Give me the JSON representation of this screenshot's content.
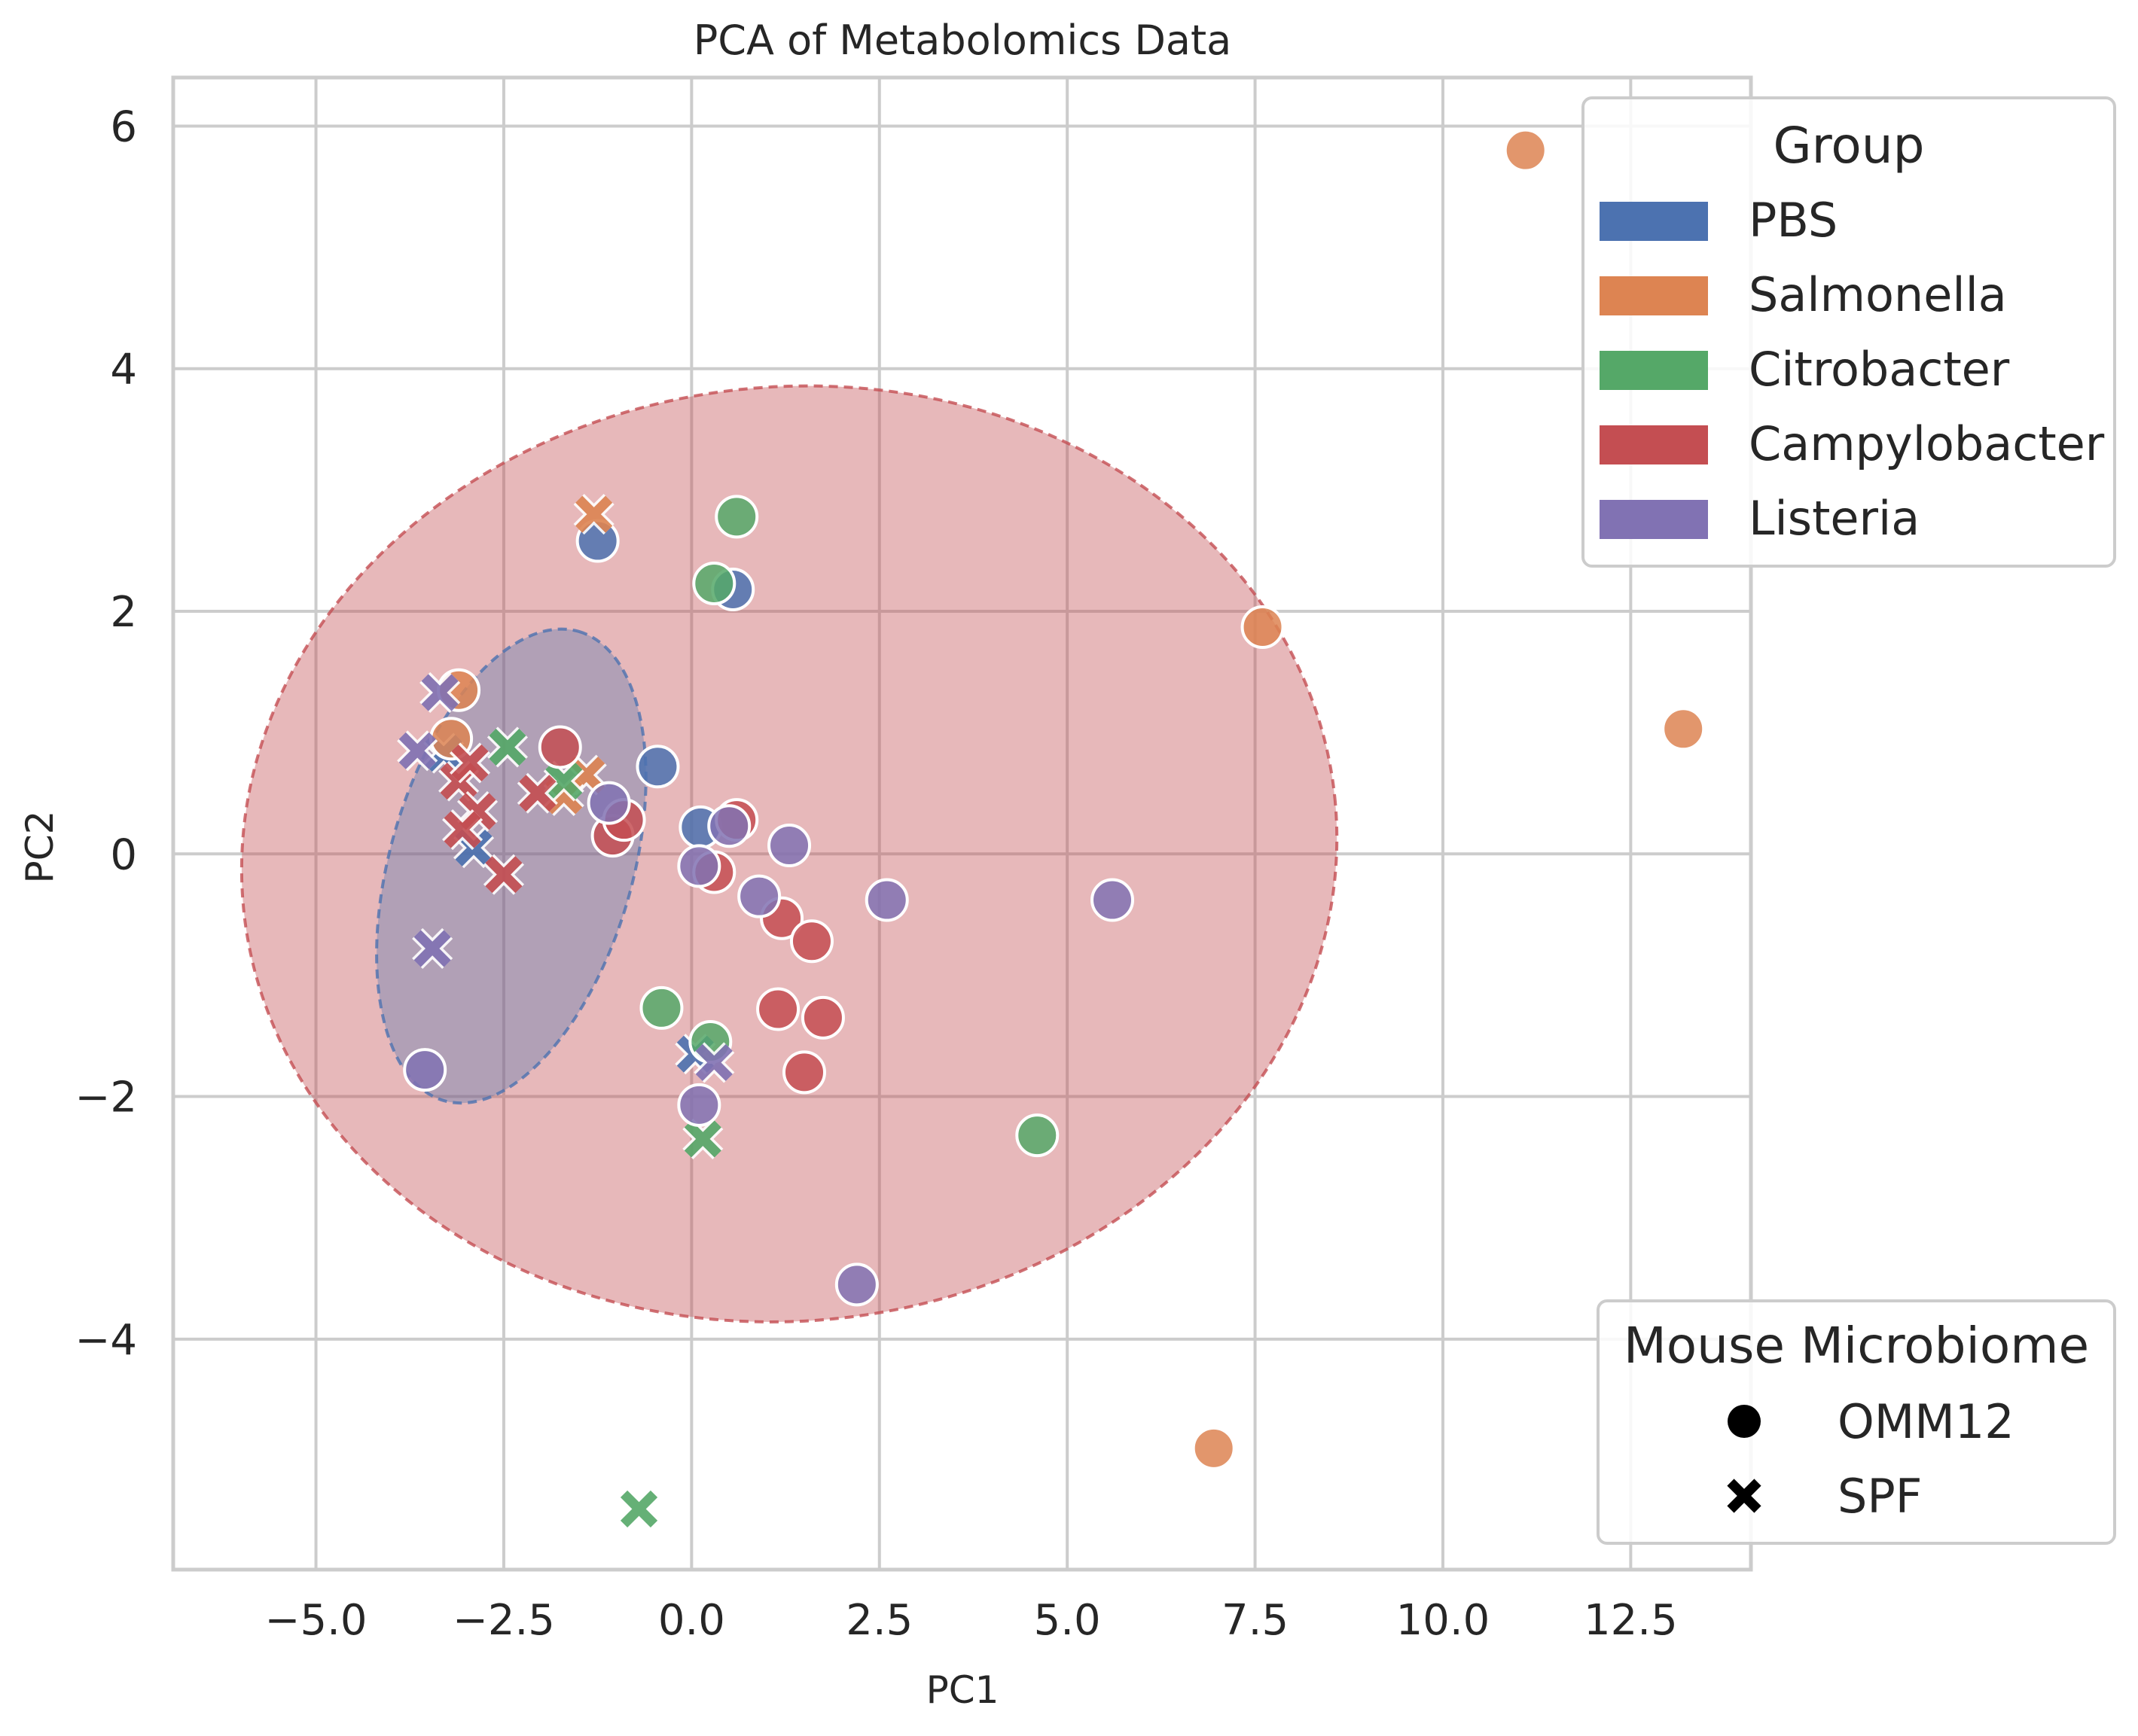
{
  "colors": {
    "PBS": "#4c72b0",
    "Salmonella": "#dd8452",
    "Citrobacter": "#55a868",
    "Campylobacter": "#c44e52",
    "Listeria": "#8172b3",
    "grid": "#cccccc",
    "background": "#ffffff"
  },
  "chart_data": {
    "type": "scatter",
    "title": "PCA of Metabolomics Data",
    "xlabel": "PC1",
    "ylabel": "PC2",
    "xlim": [
      -6.9,
      14.1
    ],
    "ylim": [
      -5.9,
      6.4
    ],
    "xticks": [
      -5.0,
      -2.5,
      0.0,
      2.5,
      5.0,
      7.5,
      10.0,
      12.5
    ],
    "xtick_labels": [
      "−5.0",
      "−2.5",
      "0.0",
      "2.5",
      "5.0",
      "7.5",
      "10.0",
      "12.5"
    ],
    "yticks": [
      -4,
      -2,
      0,
      2,
      4,
      6
    ],
    "ytick_labels": [
      "−4",
      "−2",
      "0",
      "2",
      "4",
      "6"
    ],
    "grid": true,
    "legend_group": {
      "title": "Group",
      "placement": "top-right",
      "entries": [
        "PBS",
        "Salmonella",
        "Citrobacter",
        "Campylobacter",
        "Listeria"
      ]
    },
    "legend_marker": {
      "title": "Mouse Microbiome",
      "placement": "bottom-right",
      "entries": [
        {
          "label": "OMM12",
          "marker": "circle"
        },
        {
          "label": "SPF",
          "marker": "x"
        }
      ]
    },
    "ellipses": [
      {
        "group": "Campylobacter",
        "center": [
          1.3,
          0.0
        ],
        "rx": 7.3,
        "ry": 3.85,
        "angle_deg": -6,
        "opacity": 0.4
      },
      {
        "group": "PBS",
        "center": [
          -2.4,
          -0.1
        ],
        "rx": 3.25,
        "ry": 1.0,
        "angle_deg": -74,
        "opacity": 0.35
      }
    ],
    "series": [
      {
        "name": "PBS",
        "points": [
          {
            "x": -0.45,
            "y": 0.72,
            "marker": "circle"
          },
          {
            "x": 0.12,
            "y": 0.22,
            "marker": "circle"
          },
          {
            "x": -1.25,
            "y": 2.58,
            "marker": "circle"
          },
          {
            "x": 0.55,
            "y": 2.18,
            "marker": "circle"
          },
          {
            "x": -3.3,
            "y": 0.83,
            "marker": "x"
          },
          {
            "x": -2.9,
            "y": 0.05,
            "marker": "x"
          },
          {
            "x": 0.05,
            "y": -1.65,
            "marker": "x"
          }
        ]
      },
      {
        "name": "Salmonella",
        "points": [
          {
            "x": 11.1,
            "y": 5.8,
            "marker": "circle"
          },
          {
            "x": 13.2,
            "y": 1.03,
            "marker": "circle"
          },
          {
            "x": 7.6,
            "y": 1.87,
            "marker": "circle"
          },
          {
            "x": 6.95,
            "y": -4.9,
            "marker": "circle"
          },
          {
            "x": -3.1,
            "y": 1.35,
            "marker": "circle"
          },
          {
            "x": -3.2,
            "y": 0.95,
            "marker": "circle"
          },
          {
            "x": -1.3,
            "y": 2.8,
            "marker": "x"
          },
          {
            "x": -1.4,
            "y": 0.65,
            "marker": "x"
          },
          {
            "x": -1.7,
            "y": 0.48,
            "marker": "x"
          }
        ]
      },
      {
        "name": "Citrobacter",
        "points": [
          {
            "x": 0.6,
            "y": 2.78,
            "marker": "circle"
          },
          {
            "x": 0.3,
            "y": 2.23,
            "marker": "circle"
          },
          {
            "x": -0.4,
            "y": -1.27,
            "marker": "circle"
          },
          {
            "x": 0.25,
            "y": -1.55,
            "marker": "circle"
          },
          {
            "x": 4.6,
            "y": -2.32,
            "marker": "circle"
          },
          {
            "x": -2.45,
            "y": 0.88,
            "marker": "x"
          },
          {
            "x": -1.7,
            "y": 0.6,
            "marker": "x"
          },
          {
            "x": 0.15,
            "y": -2.35,
            "marker": "x"
          },
          {
            "x": -0.7,
            "y": -5.4,
            "marker": "x"
          }
        ]
      },
      {
        "name": "Campylobacter",
        "points": [
          {
            "x": -1.75,
            "y": 0.88,
            "marker": "circle"
          },
          {
            "x": -1.05,
            "y": 0.15,
            "marker": "circle"
          },
          {
            "x": -0.9,
            "y": 0.28,
            "marker": "circle"
          },
          {
            "x": 0.6,
            "y": 0.28,
            "marker": "circle"
          },
          {
            "x": 0.3,
            "y": -0.15,
            "marker": "circle"
          },
          {
            "x": 1.2,
            "y": -0.53,
            "marker": "circle"
          },
          {
            "x": 1.6,
            "y": -0.72,
            "marker": "circle"
          },
          {
            "x": 1.15,
            "y": -1.28,
            "marker": "circle"
          },
          {
            "x": 1.75,
            "y": -1.35,
            "marker": "circle"
          },
          {
            "x": 1.5,
            "y": -1.8,
            "marker": "circle"
          },
          {
            "x": -3.1,
            "y": 0.6,
            "marker": "x"
          },
          {
            "x": -2.85,
            "y": 0.35,
            "marker": "x"
          },
          {
            "x": -3.05,
            "y": 0.2,
            "marker": "x"
          },
          {
            "x": -2.95,
            "y": 0.75,
            "marker": "x"
          },
          {
            "x": -2.5,
            "y": -0.17,
            "marker": "x"
          },
          {
            "x": -2.05,
            "y": 0.5,
            "marker": "x"
          }
        ]
      },
      {
        "name": "Listeria",
        "points": [
          {
            "x": -1.1,
            "y": 0.42,
            "marker": "circle"
          },
          {
            "x": 0.5,
            "y": 0.23,
            "marker": "circle"
          },
          {
            "x": 1.3,
            "y": 0.07,
            "marker": "circle"
          },
          {
            "x": 0.1,
            "y": -0.1,
            "marker": "circle"
          },
          {
            "x": 0.9,
            "y": -0.35,
            "marker": "circle"
          },
          {
            "x": 2.6,
            "y": -0.38,
            "marker": "circle"
          },
          {
            "x": 5.6,
            "y": -0.38,
            "marker": "circle"
          },
          {
            "x": -3.55,
            "y": -1.78,
            "marker": "circle"
          },
          {
            "x": 0.1,
            "y": -2.07,
            "marker": "circle"
          },
          {
            "x": 2.2,
            "y": -3.55,
            "marker": "circle"
          },
          {
            "x": -3.35,
            "y": 1.33,
            "marker": "x"
          },
          {
            "x": -3.65,
            "y": 0.85,
            "marker": "x"
          },
          {
            "x": -3.45,
            "y": -0.78,
            "marker": "x"
          },
          {
            "x": 0.3,
            "y": -1.72,
            "marker": "x"
          }
        ]
      }
    ]
  }
}
